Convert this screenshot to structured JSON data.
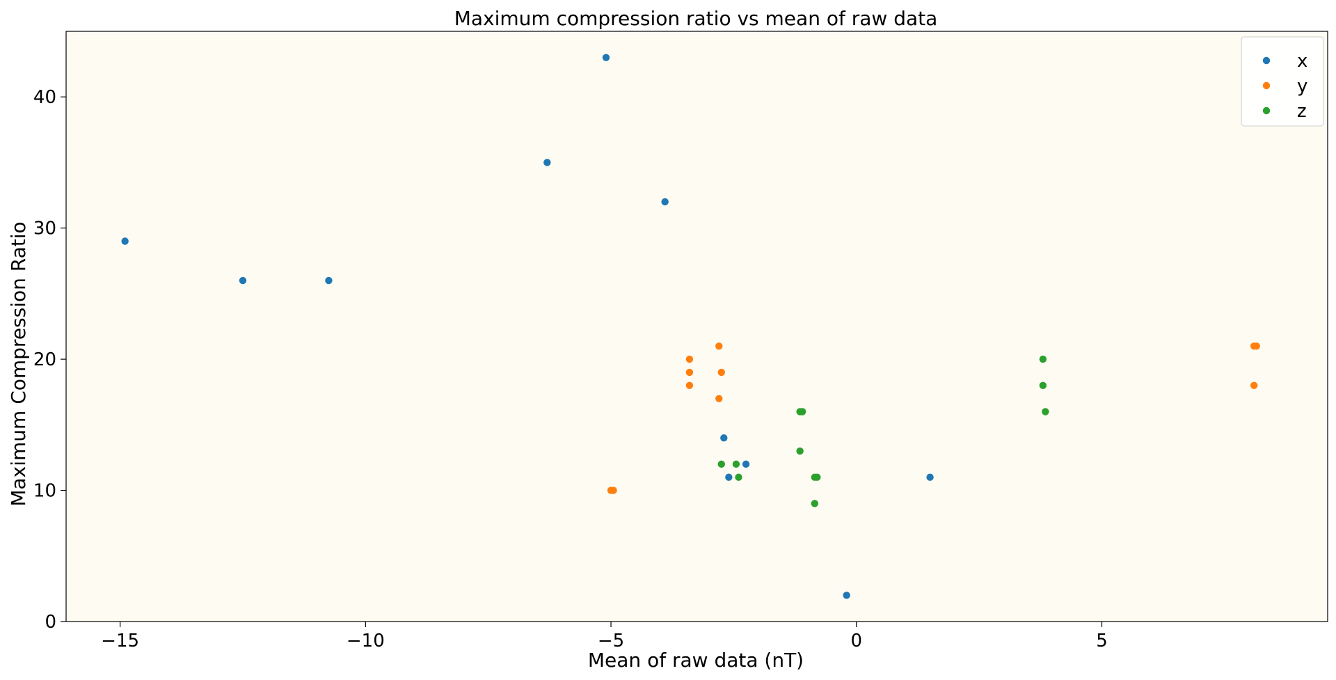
{
  "chart_data": {
    "type": "scatter",
    "title": "Maximum compression ratio vs mean of raw data",
    "xlabel": "Mean of raw data (nT)",
    "ylabel": "Maximum Compression Ratio",
    "xlim": [
      -16.1,
      9.6
    ],
    "ylim": [
      0,
      45
    ],
    "xticks": [
      -15,
      -10,
      -5,
      0,
      5
    ],
    "xtick_labels": [
      "−15",
      "−10",
      "−5",
      "0",
      "5"
    ],
    "yticks": [
      0,
      10,
      20,
      30,
      40
    ],
    "ytick_labels": [
      "0",
      "10",
      "20",
      "30",
      "40"
    ],
    "grid": false,
    "legend_position": "top-right",
    "background": "#fefbf3",
    "series": [
      {
        "name": "x",
        "color": "#1f77b4",
        "points": [
          [
            -14.9,
            29
          ],
          [
            -12.5,
            26
          ],
          [
            -10.75,
            26
          ],
          [
            -6.3,
            35
          ],
          [
            -5.1,
            43
          ],
          [
            -3.9,
            32
          ],
          [
            -2.7,
            14
          ],
          [
            -2.6,
            11
          ],
          [
            -2.25,
            12
          ],
          [
            -0.2,
            2
          ],
          [
            1.5,
            11
          ]
        ]
      },
      {
        "name": "y",
        "color": "#ff7f0e",
        "points": [
          [
            -5.0,
            10
          ],
          [
            -4.95,
            10
          ],
          [
            -3.4,
            20
          ],
          [
            -3.4,
            19
          ],
          [
            -3.4,
            18
          ],
          [
            -2.8,
            21
          ],
          [
            -2.75,
            19
          ],
          [
            -2.8,
            17
          ],
          [
            8.1,
            21
          ],
          [
            8.15,
            21
          ],
          [
            8.1,
            18
          ]
        ]
      },
      {
        "name": "z",
        "color": "#2ca02c",
        "points": [
          [
            -2.75,
            12
          ],
          [
            -2.45,
            12
          ],
          [
            -2.4,
            11
          ],
          [
            -1.15,
            16
          ],
          [
            -1.1,
            16
          ],
          [
            -1.15,
            13
          ],
          [
            -0.85,
            11
          ],
          [
            -0.8,
            11
          ],
          [
            -0.85,
            9
          ],
          [
            3.8,
            20
          ],
          [
            3.8,
            18
          ],
          [
            3.85,
            16
          ]
        ]
      }
    ]
  }
}
